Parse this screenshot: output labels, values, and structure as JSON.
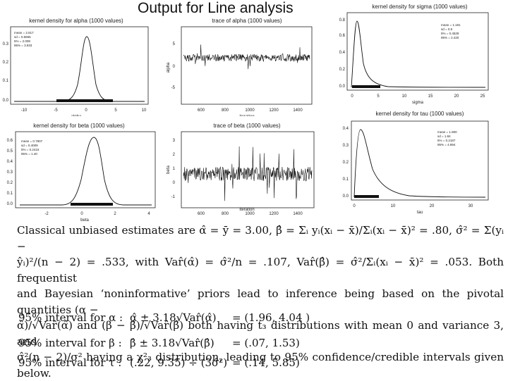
{
  "title": "Output for Line analysis",
  "panels": {
    "alpha_density": {
      "title": "kernel density for alpha (1000 values)",
      "stats": [
        "mean = 2.817",
        "sd = 0.6655",
        "5% = 2.008",
        "95% = 3.933"
      ],
      "xlabel": "alpha",
      "xticks": [
        "-10",
        "-5",
        "0",
        "5",
        "10"
      ],
      "yticks": [
        "0.0",
        "0.1",
        "0.2",
        "0.3"
      ]
    },
    "alpha_trace": {
      "title": "trace of alpha (1000 values)",
      "xlabel": "iteration",
      "ylabel": "alpha",
      "xticks": [
        "600",
        "800",
        "1000",
        "1200",
        "1400"
      ],
      "yticks": [
        "-5",
        "0",
        "5"
      ]
    },
    "sigma_density": {
      "title": "kernel density for sigma (1000 values)",
      "stats": [
        "mean = 1.181",
        "sd = 0.9",
        "5% = 0.4529",
        "95% = 2.420"
      ],
      "xlabel": "sigma",
      "xticks": [
        "0",
        "5",
        "10",
        "15",
        "20",
        "25"
      ],
      "yticks": [
        "0.0",
        "0.2",
        "0.4",
        "0.6",
        "0.8"
      ]
    },
    "beta_density": {
      "title": "kernel density for beta (1000 values)",
      "stats": [
        "mean = 0.7807",
        "sd = 0.4009",
        "5% = 0.2415",
        "95% = 1.40"
      ],
      "xlabel": "beta",
      "xticks": [
        "-2",
        "0",
        "2",
        "4"
      ],
      "yticks": [
        "0.0",
        "0.1",
        "0.2",
        "0.3",
        "0.4",
        "0.5",
        "0.6"
      ]
    },
    "beta_trace": {
      "title": "trace of beta (1000 values)",
      "xlabel": "iteration",
      "ylabel": "beta",
      "xticks": [
        "600",
        "800",
        "1000",
        "1200",
        "1400"
      ],
      "yticks": [
        "-1",
        "0",
        "1",
        "2",
        "3"
      ]
    },
    "tau_density": {
      "title": "kernel density for tau (1000 values)",
      "stats": [
        "mean = 1.900",
        "sd = 1.84",
        "5% = 0.2187",
        "95% = 4.894"
      ],
      "xlabel": "tau",
      "xticks": [
        "0",
        "10",
        "20",
        "30"
      ],
      "yticks": [
        "0.0",
        "0.1",
        "0.2",
        "0.3",
        "0.4"
      ]
    }
  },
  "paragraph": {
    "line1": "Classical unbiased estimates are α̂ = ȳ = 3.00, β̂ = Σᵢ yᵢ(xᵢ − x̄)/Σᵢ(xᵢ − x̄)² = .80, σ̂² = Σ(yᵢ −",
    "line2": "ŷᵢ)²/(n − 2) = .533, with Var̂(α̂) = σ̂²/n = .107, Var̂(β̂) = σ̂²/Σᵢ(xᵢ − x̄)² = .053. Both frequentist",
    "line3": "and Bayesian ‘noninformative’ priors lead to inference being based on the pivotal quantities (α −",
    "line4": "α̂)/√Var̂(α̂) and (β − β̂)/√Var̂(β̂) both having t₃ distributions with mean 0 and variance 3, and",
    "line5": "σ̂²(n − 2)/σ² having a χ²₃ distribution, leading to 95% confidence/credible intervals given below."
  },
  "intervals": [
    {
      "label": "95% interval for α :",
      "formula": "α̂ ± 3.18√Var̂(α̂)",
      "result": "= (1.96, 4.04 )"
    },
    {
      "label": "95% interval for β :",
      "formula": "β̂ ± 3.18√Var̂(β̂)",
      "result": "= (.07, 1.53)"
    },
    {
      "label": "95% interval for τ :",
      "formula": "(.22, 9.35) ÷ (3σ̂²)",
      "result": "= (.14, 5.85)"
    }
  ]
}
